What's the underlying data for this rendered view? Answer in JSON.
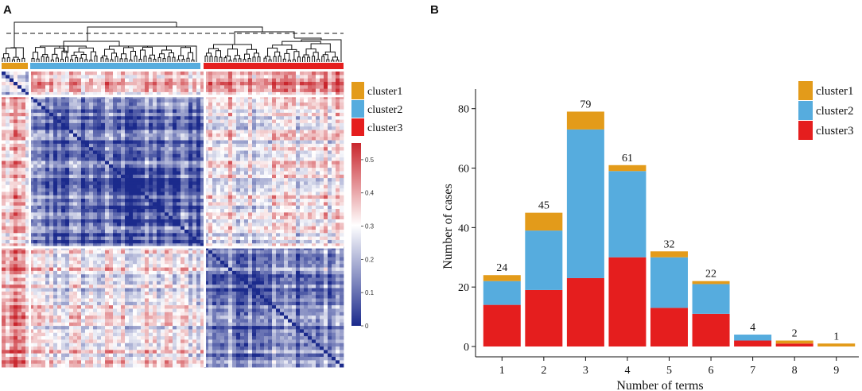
{
  "panels": {
    "a": "A",
    "b": "B"
  },
  "colors": {
    "cluster1": "#E39B1A",
    "cluster2": "#56ACDE",
    "cluster3": "#E51E1E",
    "heat_low": "#1B2A8C",
    "heat_mid": "#FFFFFF",
    "heat_high": "#C9262D"
  },
  "heatmap_legend": {
    "items": [
      {
        "label": "cluster1",
        "color": "#E39B1A"
      },
      {
        "label": "cluster2",
        "color": "#56ACDE"
      },
      {
        "label": "cluster3",
        "color": "#E51E1E"
      }
    ],
    "colorbar_ticks": [
      "0",
      "0.1",
      "0.2",
      "0.3",
      "0.4",
      "0.5"
    ]
  },
  "chart_data": [
    {
      "type": "heatmap",
      "panel": "A",
      "title": "",
      "description_groups": [
        "cluster1",
        "cluster2",
        "cluster3"
      ],
      "colorbar_range": [
        0,
        0.55
      ],
      "colorbar_ticks": [
        0,
        0.1,
        0.2,
        0.3,
        0.4,
        0.5
      ]
    },
    {
      "type": "bar",
      "panel": "B",
      "title": "",
      "xlabel": "Number of terms",
      "ylabel": "Number of cases",
      "categories": [
        "1",
        "2",
        "3",
        "4",
        "5",
        "6",
        "7",
        "8",
        "9"
      ],
      "series": [
        {
          "name": "cluster3",
          "values": [
            14,
            19,
            23,
            30,
            13,
            11,
            2,
            1,
            0
          ]
        },
        {
          "name": "cluster2",
          "values": [
            8,
            20,
            50,
            29,
            17,
            10,
            2,
            0,
            0
          ]
        },
        {
          "name": "cluster1",
          "values": [
            2,
            6,
            6,
            2,
            2,
            1,
            0,
            1,
            1
          ]
        }
      ],
      "totals": [
        24,
        45,
        79,
        61,
        32,
        22,
        4,
        2,
        1
      ],
      "yticks": [
        0,
        20,
        40,
        60,
        80
      ],
      "ylim": [
        0,
        85
      ],
      "legend": [
        "cluster1",
        "cluster2",
        "cluster3"
      ],
      "legend_position": "top-right"
    }
  ]
}
